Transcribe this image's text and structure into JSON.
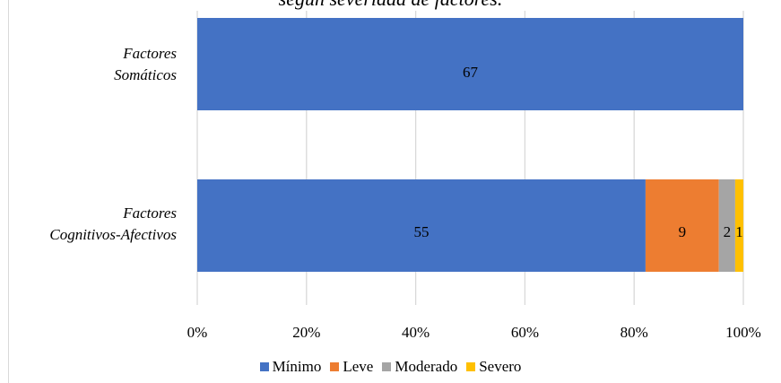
{
  "chart_data": {
    "type": "bar",
    "orientation": "horizontal",
    "stacked": "percent",
    "title": "según severidad de factores.",
    "categories": [
      "Factores Somáticos",
      "Factores Cognitivos-Afectivos"
    ],
    "category_lines": [
      [
        "Factores",
        "Somáticos"
      ],
      [
        "Factores",
        "Cognitivos-Afectivos"
      ]
    ],
    "series": [
      {
        "name": "Mínimo",
        "color": "#4472c4",
        "values": [
          67,
          55
        ]
      },
      {
        "name": "Leve",
        "color": "#ed7d31",
        "values": [
          0,
          9
        ]
      },
      {
        "name": "Moderado",
        "color": "#a5a5a5",
        "values": [
          0,
          2
        ]
      },
      {
        "name": "Severo",
        "color": "#ffc000",
        "values": [
          0,
          1
        ]
      }
    ],
    "x_ticks": [
      "0%",
      "20%",
      "40%",
      "60%",
      "80%",
      "100%"
    ],
    "xlim": [
      0,
      100
    ],
    "grid": true,
    "legend_position": "bottom"
  }
}
